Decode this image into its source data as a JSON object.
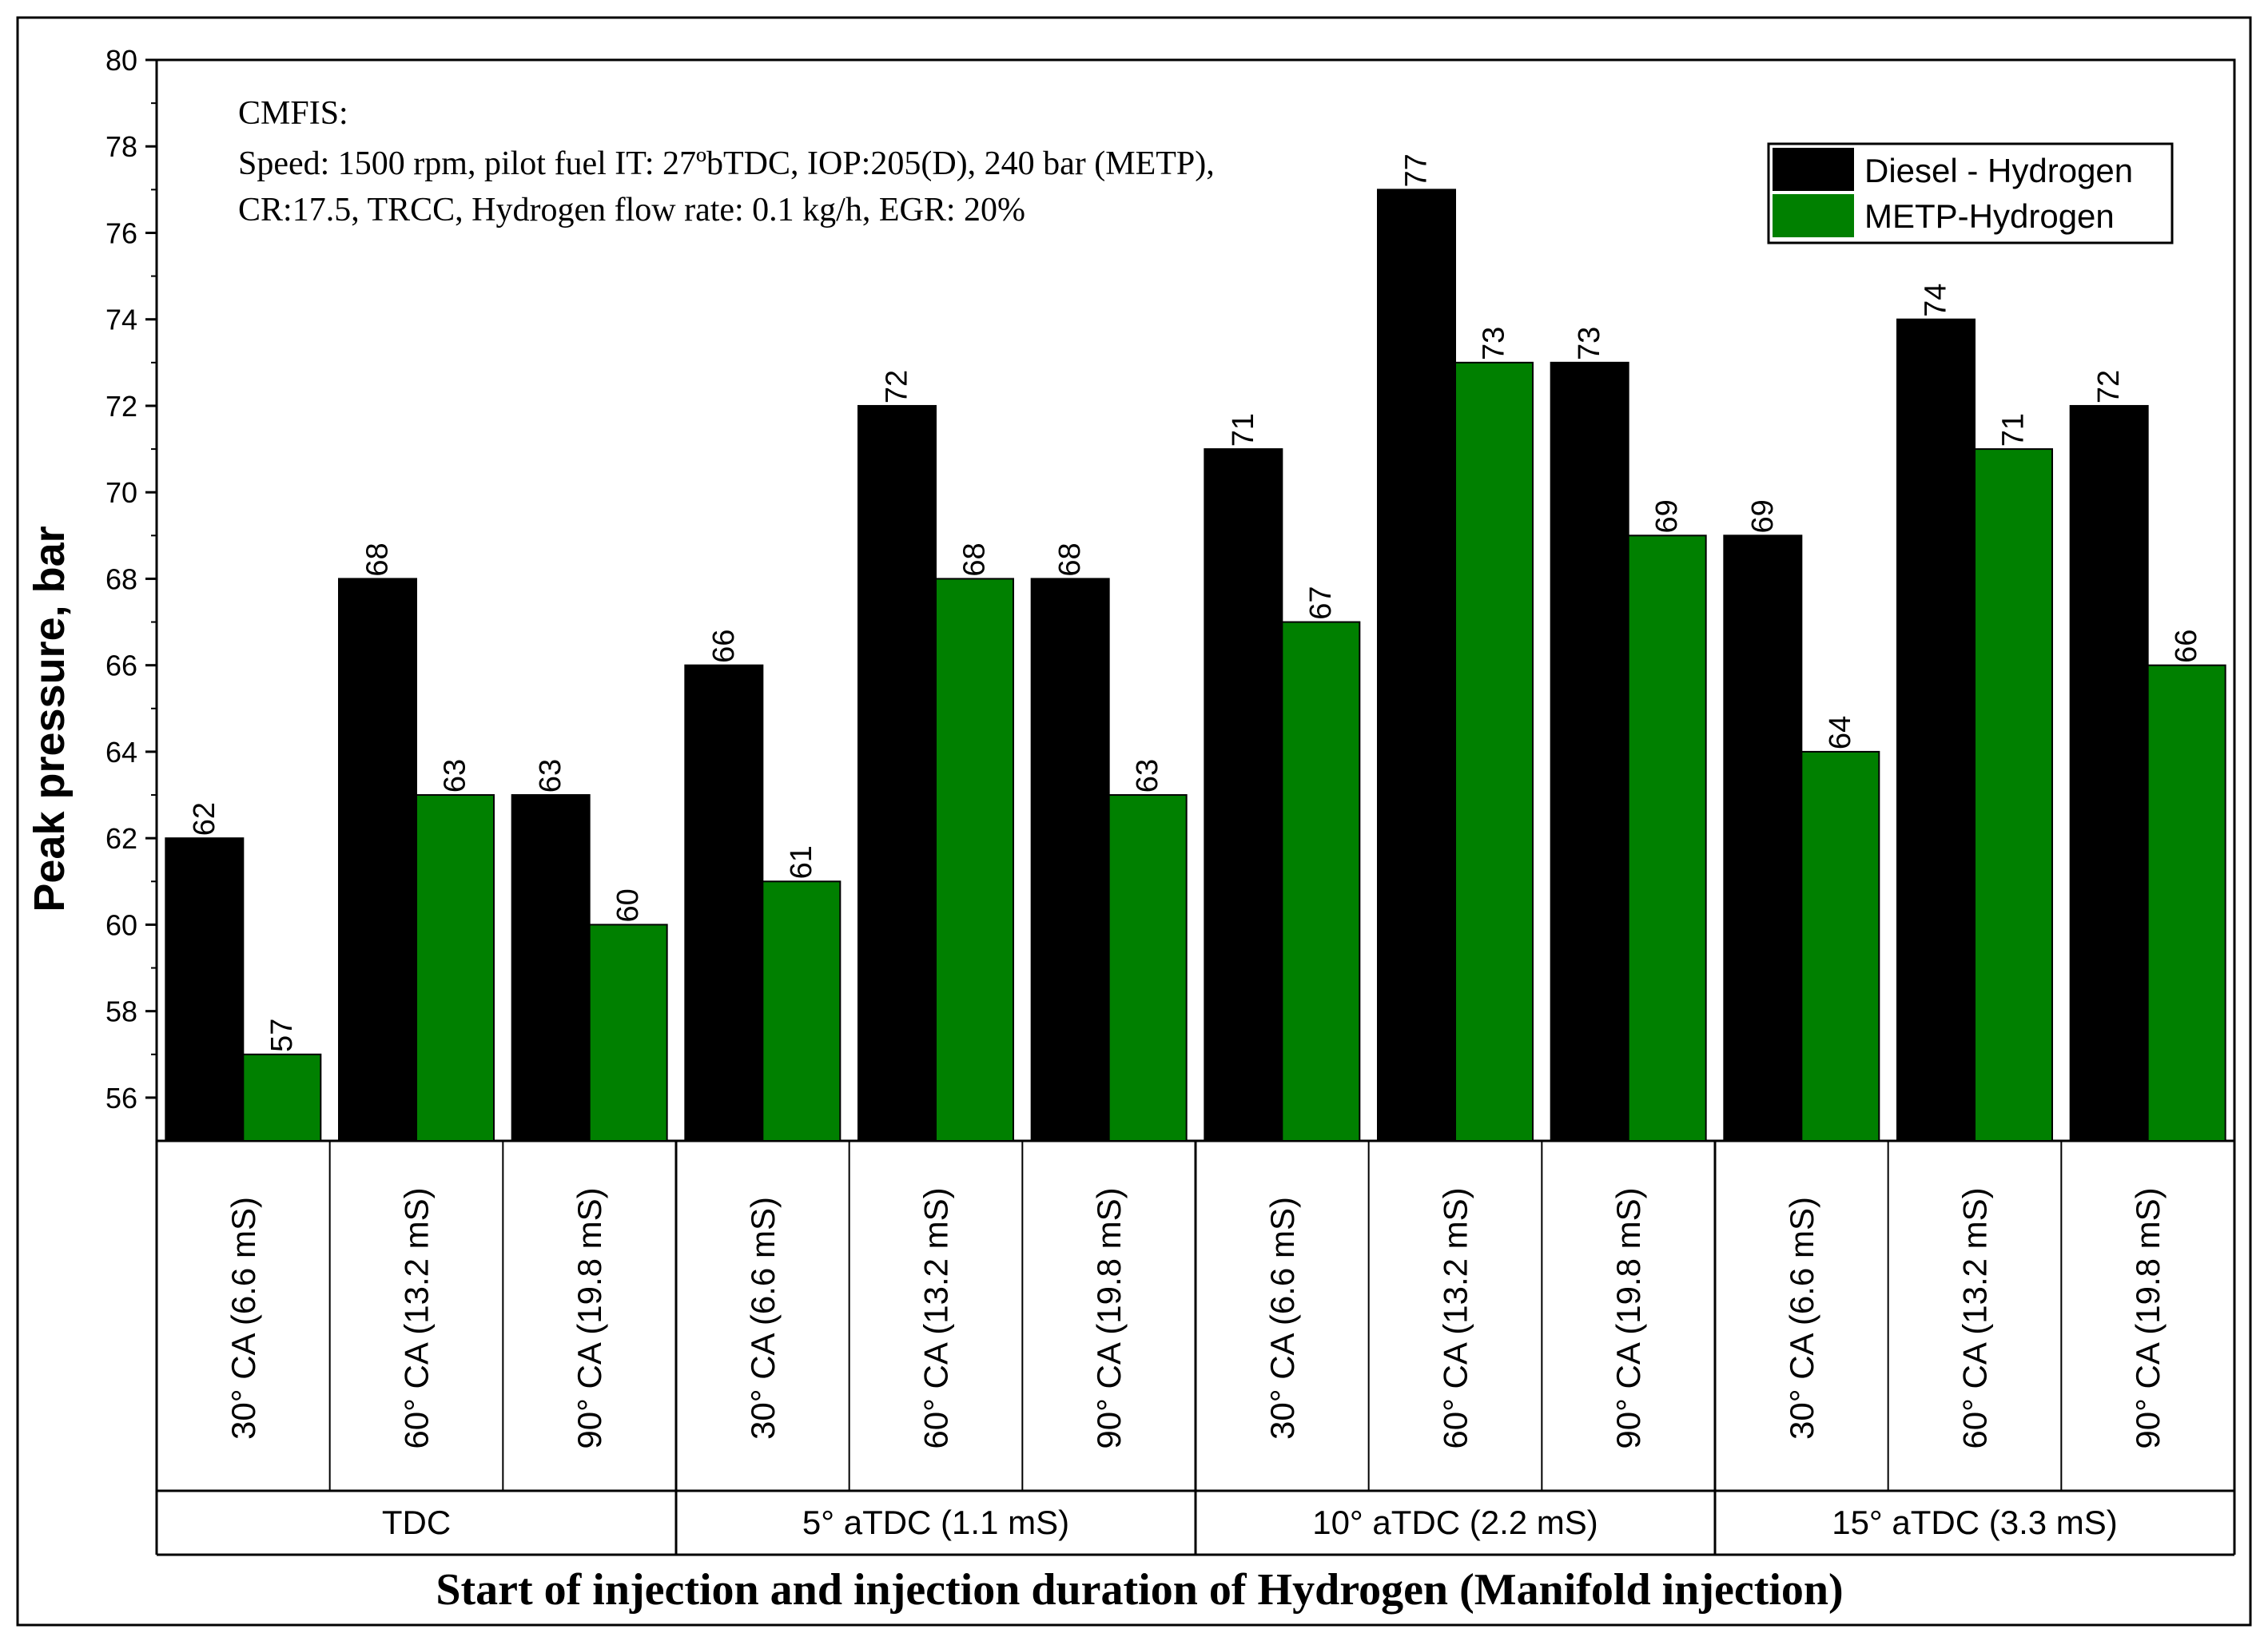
{
  "colors": {
    "diesel": "#000000",
    "metp": "#008000",
    "axis": "#000000",
    "background": "#ffffff"
  },
  "annotation": {
    "line1": "CMFIS:",
    "line2": "Speed: 1500 rpm, pilot fuel IT: 27ºbTDC, IOP:205(D), 240 bar (METP),",
    "line3": "CR:17.5, TRCC, Hydrogen flow rate: 0.1 kg/h, EGR: 20%"
  },
  "chart_data": {
    "type": "bar",
    "title": "",
    "xlabel": "Start of injection and injection duration of Hydrogen (Manifold injection)",
    "ylabel": "Peak pressure, bar",
    "ylim": [
      55,
      80
    ],
    "yticks": [
      56,
      58,
      60,
      62,
      64,
      66,
      68,
      70,
      72,
      74,
      76,
      78,
      80
    ],
    "legend_position": "top-right",
    "categories": [
      "30° CA (6.6 mS)",
      "60° CA (13.2 mS)",
      "90° CA (19.8 mS)",
      "30° CA (6.6 mS)",
      "60° CA (13.2 mS)",
      "90° CA (19.8 mS)",
      "30° CA (6.6 mS)",
      "60° CA (13.2 mS)",
      "90° CA (19.8 mS)",
      "30° CA (6.6 mS)",
      "60° CA (13.2 mS)",
      "90° CA (19.8 mS)"
    ],
    "groups": [
      {
        "label": "TDC",
        "size": 3
      },
      {
        "label": "5° aTDC (1.1 mS)",
        "size": 3
      },
      {
        "label": "10° aTDC (2.2 mS)",
        "size": 3
      },
      {
        "label": "15° aTDC (3.3 mS)",
        "size": 3
      }
    ],
    "series": [
      {
        "name": "Diesel - Hydrogen",
        "color": "#000000",
        "values": [
          62,
          68,
          63,
          66,
          72,
          68,
          71,
          77,
          73,
          69,
          74,
          72
        ]
      },
      {
        "name": "METP-Hydrogen",
        "color": "#008000",
        "values": [
          57,
          63,
          60,
          61,
          68,
          63,
          67,
          73,
          69,
          64,
          71,
          66
        ]
      }
    ]
  }
}
